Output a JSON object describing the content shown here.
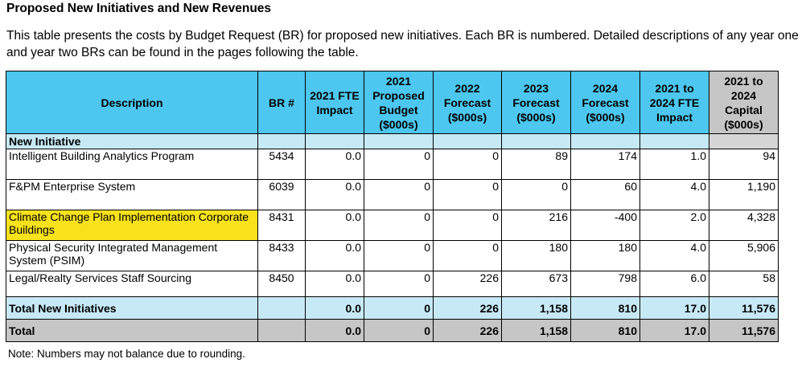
{
  "title": "Proposed New Initiatives and New Revenues",
  "intro": "This table presents the costs by Budget Request (BR) for proposed new initiatives. Each BR is numbered. Detailed descriptions of any year one and year two BRs can be found in the pages following the table.",
  "headers": {
    "description": "Description",
    "br": "BR #",
    "fte": "2021 FTE Impact",
    "budget": "2021 Proposed Budget ($000s)",
    "f2022": "2022 Forecast ($000s)",
    "f2023": "2023 Forecast ($000s)",
    "f2024": "2024 Forecast ($000s)",
    "fte_range": "2021 to 2024 FTE Impact",
    "capital": "2021 to 2024 Capital ($000s)"
  },
  "section_label": "New Initiative",
  "rows": [
    {
      "description": "Intelligent Building Analytics Program",
      "br": "5434",
      "fte": "0.0",
      "budget": "0",
      "f2022": "0",
      "f2023": "89",
      "f2024": "174",
      "fte_range": "1.0",
      "capital": "94"
    },
    {
      "description": "F&PM Enterprise System",
      "br": "6039",
      "fte": "0.0",
      "budget": "0",
      "f2022": "0",
      "f2023": "0",
      "f2024": "60",
      "fte_range": "4.0",
      "capital": "1,190"
    },
    {
      "description": "Climate Change Plan Implementation Corporate Buildings",
      "br": "8431",
      "fte": "0.0",
      "budget": "0",
      "f2022": "0",
      "f2023": "216",
      "f2024": "-400",
      "fte_range": "2.0",
      "capital": "4,328"
    },
    {
      "description": "Physical Security Integrated Management System (PSIM)",
      "br": "8433",
      "fte": "0.0",
      "budget": "0",
      "f2022": "0",
      "f2023": "180",
      "f2024": "180",
      "fte_range": "4.0",
      "capital": "5,906"
    },
    {
      "description": "Legal/Realty Services Staff Sourcing",
      "br": "8450",
      "fte": "0.0",
      "budget": "0",
      "f2022": "226",
      "f2023": "673",
      "f2024": "798",
      "fte_range": "6.0",
      "capital": "58"
    }
  ],
  "total_new": {
    "label": "Total New Initiatives",
    "fte": "0.0",
    "budget": "0",
    "f2022": "226",
    "f2023": "1,158",
    "f2024": "810",
    "fte_range": "17.0",
    "capital": "11,576"
  },
  "total": {
    "label": "Total",
    "fte": "0.0",
    "budget": "0",
    "f2022": "226",
    "f2023": "1,158",
    "f2024": "810",
    "fte_range": "17.0",
    "capital": "11,576"
  },
  "note": "Note: Numbers may not balance due to rounding.",
  "colors": {
    "header": "#4dc7ef",
    "section": "#c7e9f6",
    "total": "#c6c6c6",
    "highlight": "#f7e21c"
  }
}
